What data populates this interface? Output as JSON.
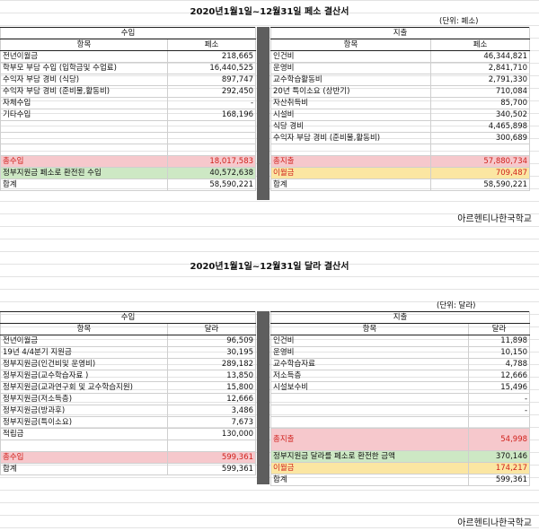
{
  "peso": {
    "title": "2020년1월1일~12월31일  페소 결산서",
    "unit": "(단위: 페소)",
    "income_header": "수입",
    "expense_header": "지출",
    "col_item": "항목",
    "col_currency": "페소",
    "income_rows": [
      {
        "item": "전년이월금",
        "value": "218,665"
      },
      {
        "item": "학부모 부담 수입 (입학금및 수업료)",
        "value": "16,440,525"
      },
      {
        "item": "수익자 부담 경비  (식당)",
        "value": "897,747"
      },
      {
        "item": "수익자 부담 경비  (준비물,활동비)",
        "value": "292,450"
      },
      {
        "item": "자체수입",
        "value": "-"
      },
      {
        "item": "기타수입",
        "value": "168,196"
      },
      {
        "item": "",
        "value": ""
      },
      {
        "item": "",
        "value": ""
      },
      {
        "item": "",
        "value": ""
      }
    ],
    "expense_rows": [
      {
        "item": "인건비",
        "value": "46,344,821"
      },
      {
        "item": "운영비",
        "value": "2,841,710"
      },
      {
        "item": "교수학습활동비",
        "value": "2,791,330"
      },
      {
        "item": "20년 특이소요 (상반기)",
        "value": "710,084"
      },
      {
        "item": "자산취득비",
        "value": "85,700"
      },
      {
        "item": "시설비",
        "value": "340,502"
      },
      {
        "item": "식당 경비",
        "value": "4,465,898"
      },
      {
        "item": "수익자 부담 경비  (준비물,활동비)",
        "value": "300,689"
      },
      {
        "item": "",
        "value": ""
      }
    ],
    "income_total": {
      "item": "총수입",
      "value": "18,017,583"
    },
    "income_converted": {
      "item": "정부지원금 페소로 환전된 수입",
      "value": "40,572,638"
    },
    "income_sum": {
      "item": "합계",
      "value": "58,590,221"
    },
    "expense_total": {
      "item": "총지출",
      "value": "57,880,734"
    },
    "expense_carry": {
      "item": "이월금",
      "value": "709,487"
    },
    "expense_sum": {
      "item": "합계",
      "value": "58,590,221"
    },
    "footer": "아르헨티나한국학교"
  },
  "dollar": {
    "title": "2020년1월1일~12월31일  달라 결산서",
    "unit": "(단위: 달라)",
    "income_header": "수입",
    "expense_header": "지출",
    "col_item": "항목",
    "col_currency": "달라",
    "income_rows": [
      {
        "item": "전년이월금",
        "value": "96,509"
      },
      {
        "item": "19년 4/4분기 지원금",
        "value": "30,195"
      },
      {
        "item": "정부지원금(인건비및 운영비)",
        "value": "289,182"
      },
      {
        "item": "정부지원금(교수학습자료 )",
        "value": "13,850"
      },
      {
        "item": "정부지원금(교과연구회 및 교수학습지원)",
        "value": "15,800"
      },
      {
        "item": "정부지원금(저소득층)",
        "value": "12,666"
      },
      {
        "item": "정부지원금(방과후)",
        "value": "3,486"
      },
      {
        "item": "정부지원금(특이소요)",
        "value": "7,673"
      },
      {
        "item": "적립금",
        "value": "130,000"
      },
      {
        "item": "",
        "value": ""
      }
    ],
    "expense_rows": [
      {
        "item": "인건비",
        "value": "11,898"
      },
      {
        "item": "운영비",
        "value": "10,150"
      },
      {
        "item": "교수학습자료",
        "value": "4,788"
      },
      {
        "item": "저소득층",
        "value": "12,666"
      },
      {
        "item": "시설보수비",
        "value": "15,496"
      },
      {
        "item": "",
        "value": "-"
      },
      {
        "item": "",
        "value": "-"
      },
      {
        "item": "",
        "value": ""
      }
    ],
    "income_total": {
      "item": "총수입",
      "value": "599,361"
    },
    "income_sum": {
      "item": "합계",
      "value": "599,361"
    },
    "expense_total": {
      "item": "총지출",
      "value": "54,998"
    },
    "expense_converted": {
      "item": "정부지원금 달라를 페소로 환전한 금액",
      "value": "370,146"
    },
    "expense_carry": {
      "item": "이월금",
      "value": "174,217"
    },
    "expense_sum": {
      "item": "합계",
      "value": "599,361"
    },
    "footer": "아르헨티나한국학교"
  }
}
